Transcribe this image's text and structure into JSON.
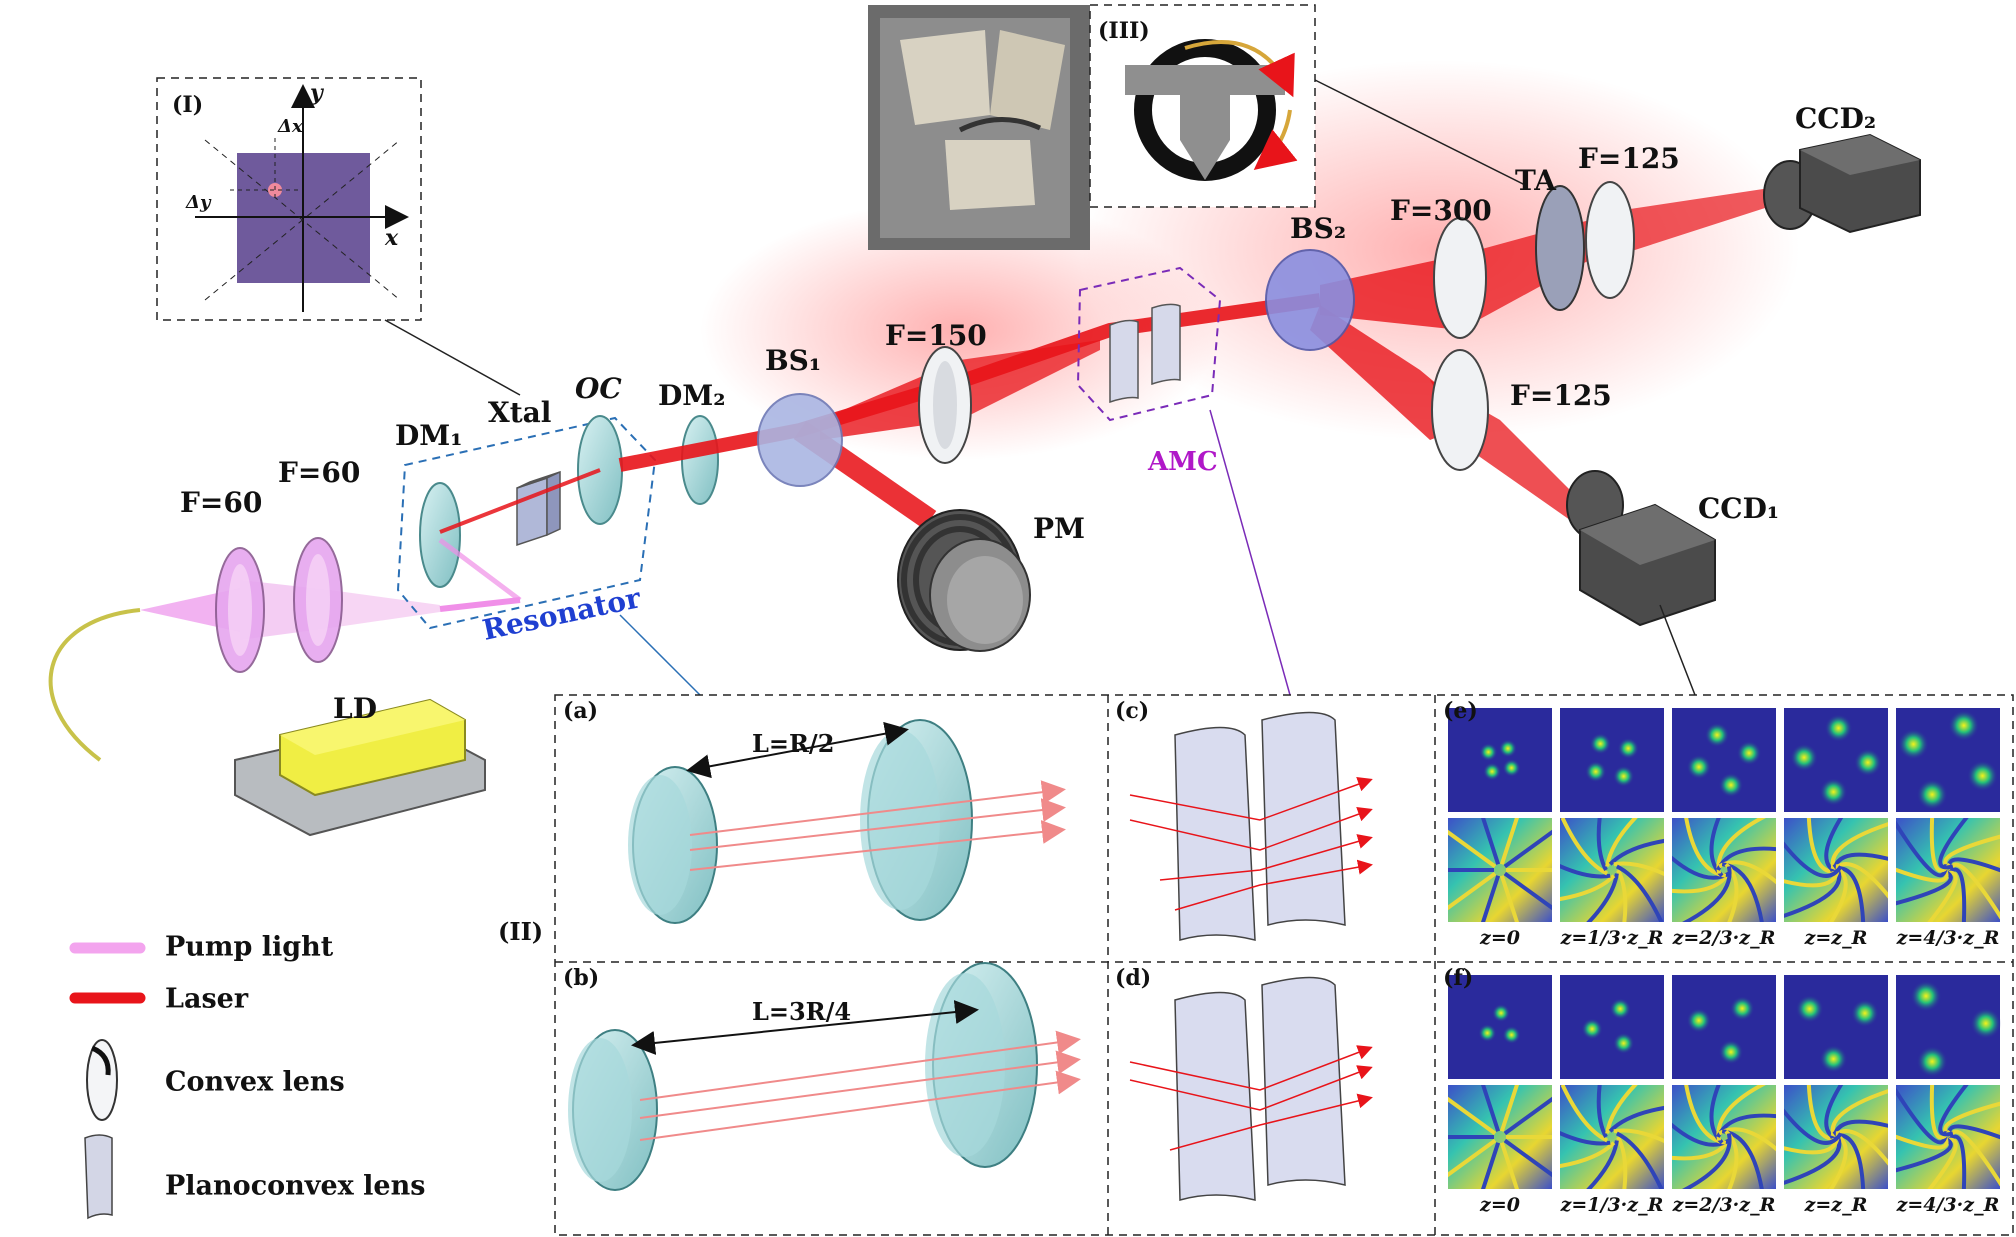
{
  "components": {
    "lens_left_1": "F=60",
    "lens_left_2": "F=60",
    "dm1": "DM₁",
    "xtal": "Xtal",
    "oc": "OC",
    "dm2": "DM₂",
    "bs1": "BS₁",
    "f150": "F=150",
    "pm": "PM",
    "amc": "AMC",
    "bs2": "BS₂",
    "f300": "F=300",
    "ta": "TA",
    "f125_top": "F=125",
    "f125_bottom": "F=125",
    "ccd2": "CCD₂",
    "ccd1": "CCD₁",
    "resonator": "Resonator",
    "ld": "LD"
  },
  "inset_I": {
    "label": "(I)",
    "x_axis": "x",
    "y_axis": "y",
    "dx": "Δx",
    "dy": "Δy"
  },
  "inset_III": {
    "label": "(III)"
  },
  "section_II_label": "(II)",
  "legend": {
    "pump": "Pump light",
    "laser": "Laser",
    "convex": "Convex lens",
    "planoconvex": "Planoconvex lens"
  },
  "panels": {
    "a": "(a)",
    "b": "(b)",
    "c": "(c)",
    "d": "(d)",
    "e": "(e)",
    "f": "(f)",
    "a_length": "L=R/2",
    "b_length": "L=3R/4"
  },
  "z_labels_e": [
    "z=0",
    "z=1/3·z_R",
    "z=2/3·z_R",
    "z=z_R",
    "z=4/3·z_R"
  ],
  "z_labels_f": [
    "z=0",
    "z=1/3·z_R",
    "z=2/3·z_R",
    "z=z_R",
    "z=4/3·z_R"
  ],
  "colors": {
    "laser": "#e8141a",
    "pump": "#e98be8",
    "resonator_box": "#2a6fb5",
    "amc_box": "#7a2bb8",
    "resonator_text": "#1f3fd1",
    "amc_text": "#b018c8",
    "lens_glass": "#9fd4d6",
    "plot_bg": "#2a2a9c"
  }
}
